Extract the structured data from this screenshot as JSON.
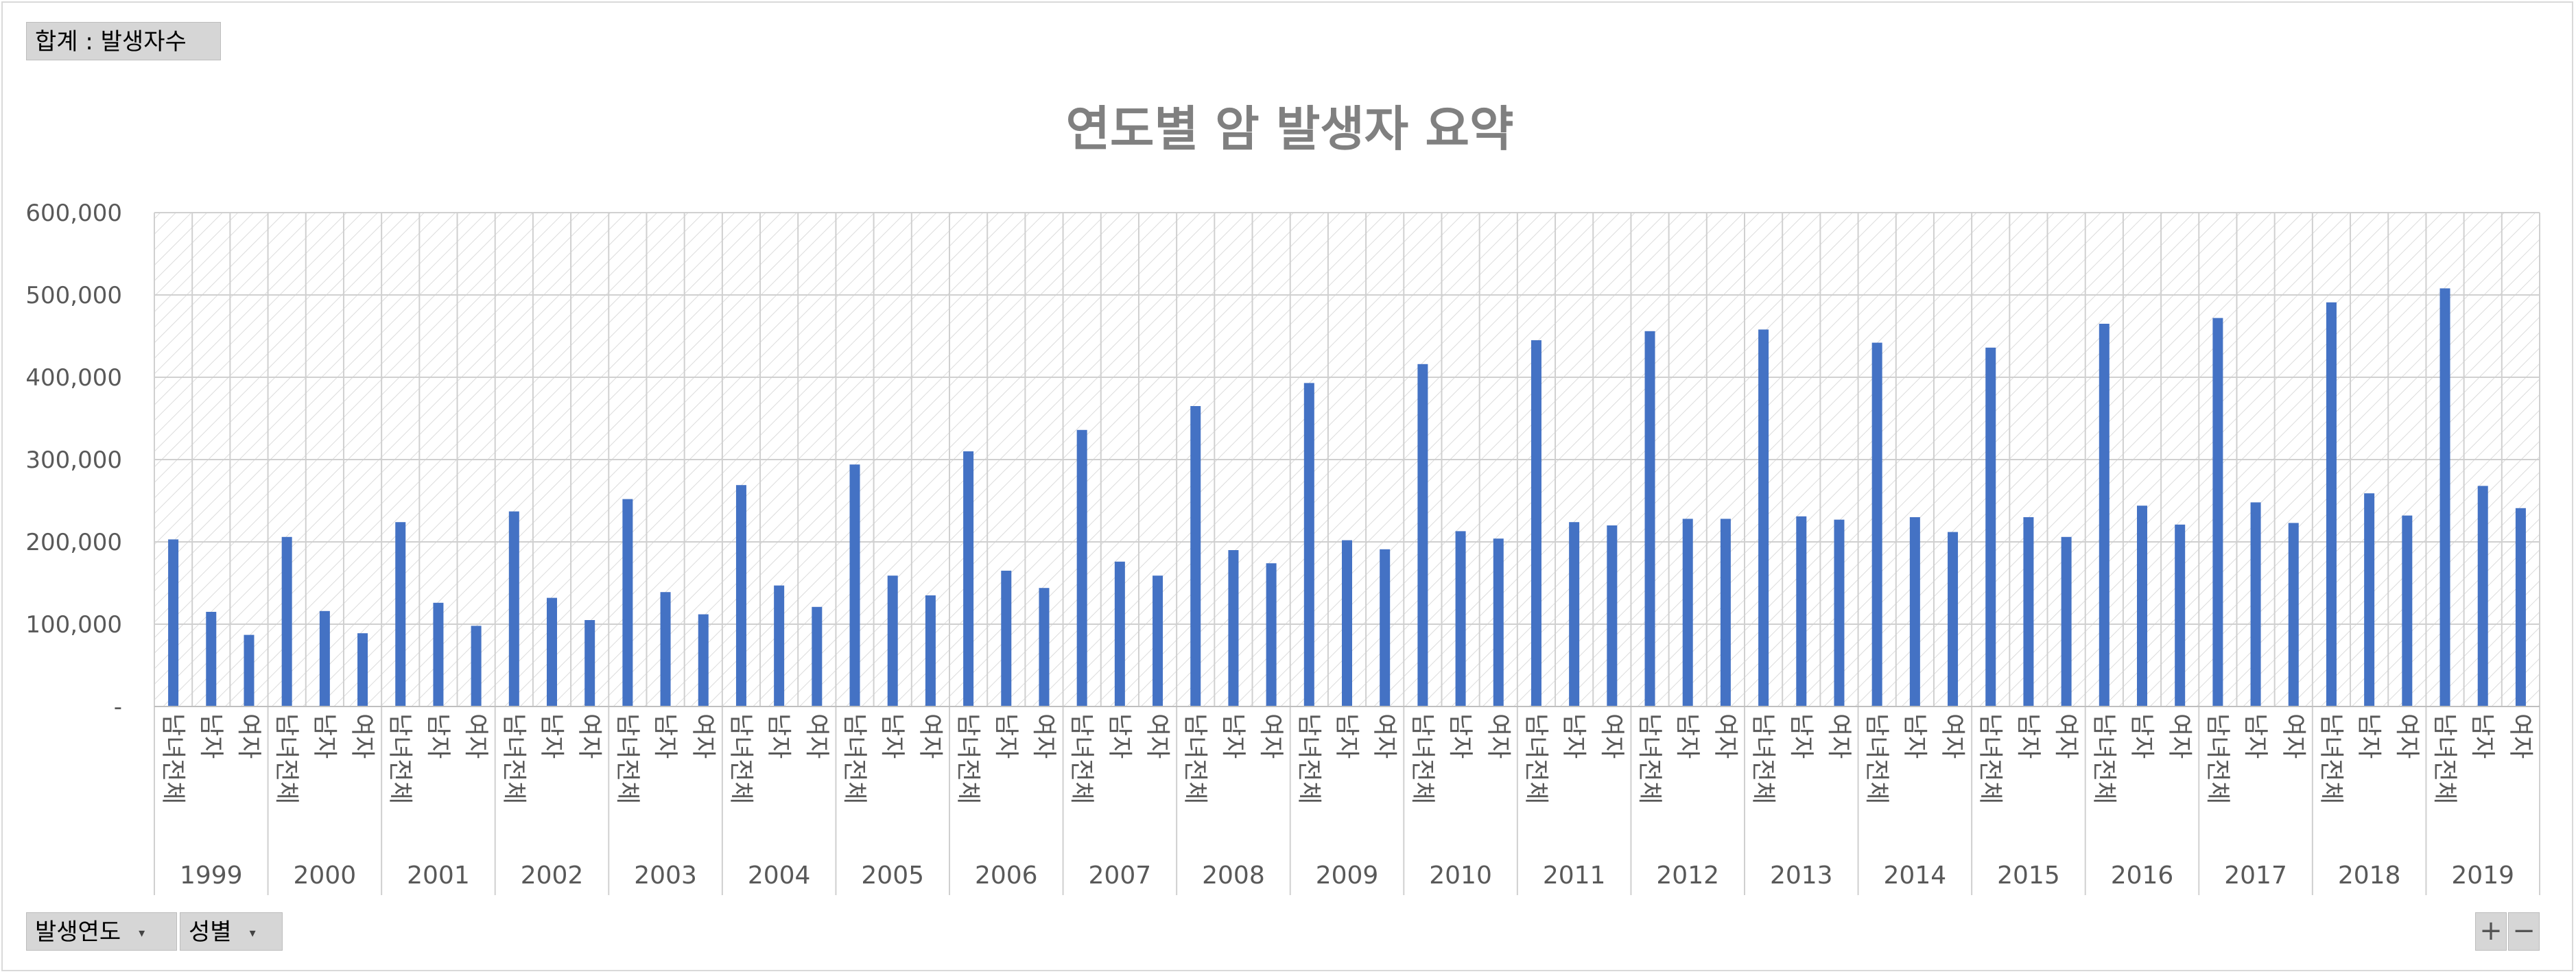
{
  "pivot": {
    "value_field": "합계 : 발생자수",
    "axis_fields": [
      {
        "label": "발생연도",
        "icon": "dropdown-arrow-icon"
      },
      {
        "label": "성별",
        "icon": "dropdown-arrow-icon"
      }
    ],
    "expand_label": "+",
    "collapse_label": "−"
  },
  "chart_data": {
    "type": "bar",
    "title": "연도별 암 발생자 요약",
    "xlabel": "",
    "ylabel": "",
    "ylim": [
      0,
      600000
    ],
    "y_ticks": [
      "-",
      "100,000",
      "200,000",
      "300,000",
      "400,000",
      "500,000",
      "600,000"
    ],
    "grid": true,
    "legend": "none",
    "bar_color": "#4472c4",
    "sub_categories": [
      "남녀전체",
      "남자",
      "여자"
    ],
    "groups": [
      {
        "year": "1999",
        "values": [
          203000,
          115000,
          87000
        ]
      },
      {
        "year": "2000",
        "values": [
          206000,
          116000,
          89000
        ]
      },
      {
        "year": "2001",
        "values": [
          224000,
          126000,
          98000
        ]
      },
      {
        "year": "2002",
        "values": [
          237000,
          132000,
          105000
        ]
      },
      {
        "year": "2003",
        "values": [
          252000,
          139000,
          112000
        ]
      },
      {
        "year": "2004",
        "values": [
          269000,
          147000,
          121000
        ]
      },
      {
        "year": "2005",
        "values": [
          294000,
          159000,
          135000
        ]
      },
      {
        "year": "2006",
        "values": [
          310000,
          165000,
          144000
        ]
      },
      {
        "year": "2007",
        "values": [
          336000,
          176000,
          159000
        ]
      },
      {
        "year": "2008",
        "values": [
          365000,
          190000,
          174000
        ]
      },
      {
        "year": "2009",
        "values": [
          393000,
          202000,
          191000
        ]
      },
      {
        "year": "2010",
        "values": [
          416000,
          213000,
          204000
        ]
      },
      {
        "year": "2011",
        "values": [
          445000,
          224000,
          220000
        ]
      },
      {
        "year": "2012",
        "values": [
          456000,
          228000,
          228000
        ]
      },
      {
        "year": "2013",
        "values": [
          458000,
          231000,
          227000
        ]
      },
      {
        "year": "2014",
        "values": [
          442000,
          230000,
          212000
        ]
      },
      {
        "year": "2015",
        "values": [
          436000,
          230000,
          206000
        ]
      },
      {
        "year": "2016",
        "values": [
          465000,
          244000,
          221000
        ]
      },
      {
        "year": "2017",
        "values": [
          472000,
          248000,
          223000
        ]
      },
      {
        "year": "2018",
        "values": [
          491000,
          259000,
          232000
        ]
      },
      {
        "year": "2019",
        "values": [
          508000,
          268000,
          241000
        ]
      }
    ]
  }
}
